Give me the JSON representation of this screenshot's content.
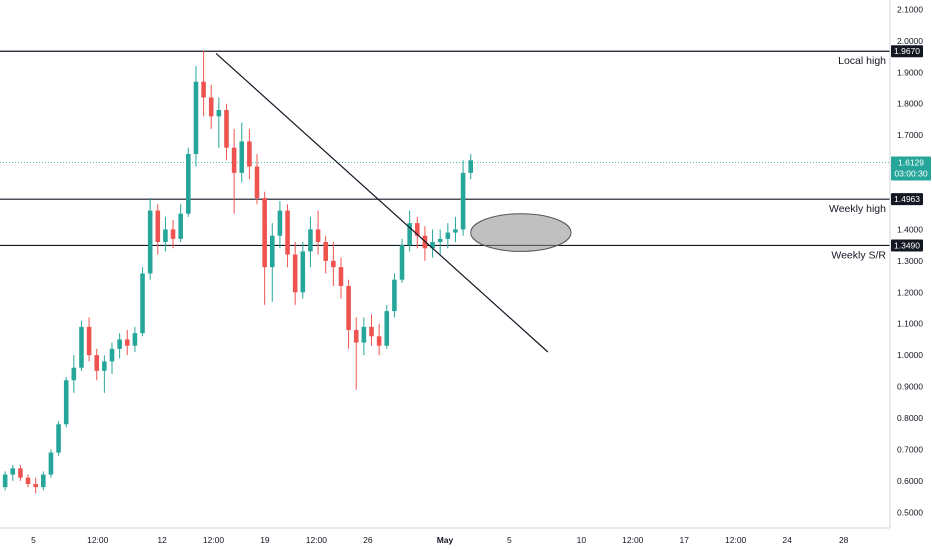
{
  "chart_data": {
    "type": "candlestick",
    "price_axis": {
      "ticks": [
        "2.1000",
        "2.0000",
        "1.9000",
        "1.8000",
        "1.7000",
        "1.6000",
        "1.5000",
        "1.4000",
        "1.3000",
        "1.2000",
        "1.1000",
        "1.0000",
        "0.9000",
        "0.8000",
        "0.7000",
        "0.6000",
        "0.5000"
      ],
      "range": [
        0.45,
        2.13
      ]
    },
    "time_axis": {
      "ticks": [
        "5",
        "12:00",
        "12",
        "12:00",
        "19",
        "12:00",
        "26",
        "May",
        "5",
        "10",
        "12:00",
        "17",
        "12:00",
        "24",
        "28"
      ],
      "tick_values": [
        0.5,
        3.0,
        5.5,
        7.5,
        9.5,
        11.5,
        13.5,
        16.5,
        19.0,
        21.8,
        23.8,
        25.8,
        27.8,
        29.8,
        32.0
      ],
      "range": [
        -0.8,
        33.8
      ]
    },
    "candles": [
      [
        0.58,
        0.63,
        0.57,
        0.62
      ],
      [
        0.62,
        0.65,
        0.6,
        0.64
      ],
      [
        0.64,
        0.65,
        0.6,
        0.61
      ],
      [
        0.61,
        0.62,
        0.58,
        0.59
      ],
      [
        0.59,
        0.61,
        0.56,
        0.58
      ],
      [
        0.58,
        0.63,
        0.57,
        0.62
      ],
      [
        0.62,
        0.7,
        0.61,
        0.69
      ],
      [
        0.69,
        0.79,
        0.68,
        0.78
      ],
      [
        0.78,
        0.93,
        0.77,
        0.92
      ],
      [
        0.92,
        1.0,
        0.88,
        0.96
      ],
      [
        0.96,
        1.11,
        0.95,
        1.09
      ],
      [
        1.09,
        1.12,
        0.98,
        1.0
      ],
      [
        1.0,
        1.02,
        0.92,
        0.95
      ],
      [
        0.95,
        1.0,
        0.88,
        0.98
      ],
      [
        0.98,
        1.04,
        0.94,
        1.02
      ],
      [
        1.02,
        1.07,
        0.99,
        1.05
      ],
      [
        1.05,
        1.08,
        1.0,
        1.03
      ],
      [
        1.03,
        1.09,
        1.01,
        1.07
      ],
      [
        1.07,
        1.28,
        1.06,
        1.26
      ],
      [
        1.26,
        1.5,
        1.24,
        1.46
      ],
      [
        1.46,
        1.48,
        1.32,
        1.36
      ],
      [
        1.36,
        1.44,
        1.33,
        1.4
      ],
      [
        1.4,
        1.43,
        1.34,
        1.37
      ],
      [
        1.37,
        1.48,
        1.36,
        1.45
      ],
      [
        1.45,
        1.66,
        1.44,
        1.64
      ],
      [
        1.64,
        1.92,
        1.6,
        1.87
      ],
      [
        1.87,
        1.97,
        1.76,
        1.82
      ],
      [
        1.82,
        1.86,
        1.72,
        1.76
      ],
      [
        1.76,
        1.82,
        1.66,
        1.78
      ],
      [
        1.78,
        1.8,
        1.62,
        1.66
      ],
      [
        1.66,
        1.72,
        1.45,
        1.58
      ],
      [
        1.58,
        1.74,
        1.55,
        1.68
      ],
      [
        1.68,
        1.72,
        1.56,
        1.6
      ],
      [
        1.6,
        1.64,
        1.48,
        1.5
      ],
      [
        1.5,
        1.52,
        1.16,
        1.28
      ],
      [
        1.28,
        1.42,
        1.17,
        1.38
      ],
      [
        1.38,
        1.49,
        1.34,
        1.46
      ],
      [
        1.46,
        1.48,
        1.28,
        1.32
      ],
      [
        1.32,
        1.36,
        1.16,
        1.2
      ],
      [
        1.2,
        1.36,
        1.18,
        1.33
      ],
      [
        1.33,
        1.44,
        1.28,
        1.4
      ],
      [
        1.4,
        1.46,
        1.32,
        1.36
      ],
      [
        1.36,
        1.38,
        1.26,
        1.3
      ],
      [
        1.3,
        1.36,
        1.22,
        1.28
      ],
      [
        1.28,
        1.31,
        1.18,
        1.22
      ],
      [
        1.22,
        1.24,
        1.02,
        1.08
      ],
      [
        1.08,
        1.12,
        0.89,
        1.04
      ],
      [
        1.04,
        1.12,
        1.0,
        1.09
      ],
      [
        1.09,
        1.13,
        1.03,
        1.06
      ],
      [
        1.06,
        1.1,
        1.0,
        1.03
      ],
      [
        1.03,
        1.16,
        1.02,
        1.14
      ],
      [
        1.14,
        1.26,
        1.12,
        1.24
      ],
      [
        1.24,
        1.37,
        1.23,
        1.35
      ],
      [
        1.35,
        1.46,
        1.33,
        1.42
      ],
      [
        1.42,
        1.44,
        1.34,
        1.38
      ],
      [
        1.38,
        1.41,
        1.3,
        1.34
      ],
      [
        1.34,
        1.4,
        1.31,
        1.36
      ],
      [
        1.36,
        1.4,
        1.32,
        1.37
      ],
      [
        1.37,
        1.42,
        1.34,
        1.39
      ],
      [
        1.39,
        1.44,
        1.36,
        1.4
      ],
      [
        1.4,
        1.62,
        1.38,
        1.58
      ],
      [
        1.58,
        1.64,
        1.56,
        1.62
      ]
    ],
    "trendline": [
      [
        7.6,
        1.96
      ],
      [
        20.5,
        1.01
      ]
    ],
    "current_price": "1.6129",
    "countdown": "03:00:30",
    "levels": [
      {
        "value": 1.967,
        "badge": "1.9670",
        "label": "Local high"
      },
      {
        "value": 1.4963,
        "badge": "1.4963",
        "label": "Weekly high"
      },
      {
        "value": 1.349,
        "badge": "1.3490",
        "label": "Weekly S/R"
      }
    ],
    "highlight_ellipse": {
      "x": [
        17.5,
        21.4
      ],
      "y": [
        1.33,
        1.45
      ]
    },
    "colors": {
      "up": "#26a69a",
      "down": "#ef5350",
      "accent": "#26a69a",
      "line": "#131722",
      "ellipse": "#8c8c8c"
    }
  }
}
